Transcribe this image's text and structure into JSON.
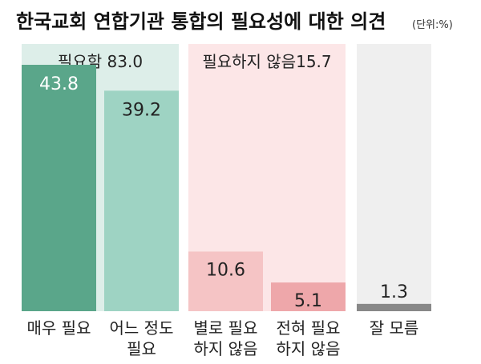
{
  "chart_data": {
    "type": "bar",
    "title": "한국교회 연합기관 통합의 필요성에 대한 의견",
    "unit": "(단위:%)",
    "categories": [
      [
        "매우 필요"
      ],
      [
        "어느 정도",
        "필요"
      ],
      [
        "별로 필요",
        "하지 않음"
      ],
      [
        "전혀 필요",
        "하지 않음"
      ],
      [
        "잘 모름"
      ]
    ],
    "values": [
      43.8,
      39.2,
      10.6,
      5.1,
      1.3
    ],
    "value_labels": [
      "43.8",
      "39.2",
      "10.6",
      "5.1",
      "1.3"
    ],
    "groups": [
      {
        "label": "필요함 83.0",
        "total": 83.0,
        "members": [
          0,
          1
        ]
      },
      {
        "label": "필요하지 않음15.7",
        "total": 15.7,
        "members": [
          2,
          3
        ]
      },
      {
        "label": "",
        "total": 1.3,
        "members": [
          4
        ]
      }
    ],
    "ylim": [
      0,
      47.5
    ],
    "grid": false,
    "colors": {
      "bars": [
        "#5aa68a",
        "#9ed3c3",
        "#f5c4c5",
        "#eea7aa",
        "#888888"
      ],
      "value_text": [
        "#ffffff",
        "#222222",
        "#222222",
        "#222222",
        "#222222"
      ],
      "group_bg": [
        "#ddeee9",
        "#fce6e7",
        "#efefef"
      ],
      "group_label_bg": [
        "#ddeee9",
        "#fce6e7",
        "#efefef"
      ]
    }
  }
}
